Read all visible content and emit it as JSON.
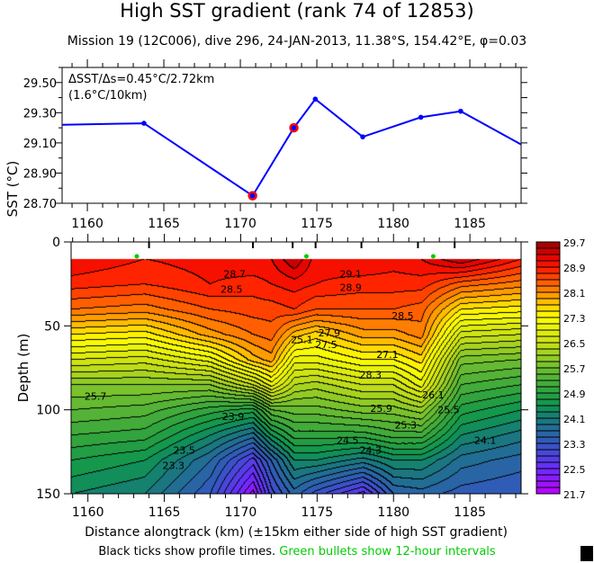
{
  "title": "High SST gradient (rank 74 of 12853)",
  "subtitle": "Mission 19 (12C006),  dive 296,  24-JAN-2013,  11.38°S, 154.42°E,  φ=0.03",
  "footnote": {
    "black": "Black ticks show profile times.",
    "green": "Green bullets show 12-hour intervals",
    "green_color": "#00cc00"
  },
  "chart_data": [
    {
      "type": "line",
      "ylabel": "SST (°C)",
      "annotation": [
        "ΔSST/Δs=0.45°C/2.72km",
        "(1.6°C/10km)"
      ],
      "xlim": [
        1158.35,
        1188.35
      ],
      "ylim": [
        28.7,
        29.6
      ],
      "xticks": [
        1160,
        1165,
        1170,
        1175,
        1180,
        1185
      ],
      "yticks": [
        "28.70",
        "28.90",
        "29.10",
        "29.30",
        "29.50"
      ],
      "line_color": "#0000ff",
      "highlight_color": "#ff0000",
      "series": [
        {
          "x": [
            1158.35,
            1163.7,
            1170.8,
            1173.5,
            1174.9,
            1178.0,
            1181.8,
            1184.4,
            1188.35
          ],
          "y": [
            29.22,
            29.23,
            28.75,
            29.2,
            29.39,
            29.14,
            29.27,
            29.31,
            29.09
          ]
        }
      ],
      "highlighted_points": [
        {
          "x": 1170.8,
          "y": 28.75
        },
        {
          "x": 1173.5,
          "y": 29.2
        }
      ]
    },
    {
      "type": "heatmap",
      "subtype": "filled-contour",
      "xlabel": "Distance alongtrack (km) (±15km either side of high SST gradient)",
      "ylabel": "Depth (m)",
      "xlim": [
        1158.9,
        1188.35
      ],
      "ylim": [
        0,
        150
      ],
      "y_inverted": true,
      "xticks": [
        1160,
        1165,
        1170,
        1175,
        1180,
        1185
      ],
      "yticks": [
        0,
        50,
        100,
        150
      ],
      "profile_times_km": [
        1164.0,
        1170.8,
        1173.4,
        1174.9,
        1177.9,
        1181.6,
        1184.0
      ],
      "twelve_hour_marks_km": [
        1163.2,
        1174.3,
        1182.6
      ],
      "x": [
        1158.9,
        1163.7,
        1168.0,
        1170.8,
        1172.0,
        1173.5,
        1174.9,
        1178.0,
        1180.0,
        1181.8,
        1184.4,
        1188.35
      ],
      "depth": [
        10,
        25,
        40,
        55,
        70,
        85,
        100,
        115,
        130,
        150
      ],
      "temperature": [
        [
          29.1,
          28.9,
          29.0,
          29.1,
          29.1,
          29.5,
          29.0,
          29.1,
          29.0,
          29.1,
          29.5,
          28.9
        ],
        [
          28.8,
          28.7,
          28.9,
          28.8,
          28.9,
          29.0,
          28.9,
          28.8,
          28.8,
          28.8,
          28.4,
          28.2
        ],
        [
          28.3,
          28.2,
          28.5,
          28.6,
          28.6,
          28.7,
          28.5,
          28.5,
          28.5,
          28.4,
          27.5,
          27.4
        ],
        [
          27.5,
          27.4,
          28.0,
          28.3,
          28.4,
          27.8,
          27.6,
          28.0,
          28.0,
          28.2,
          26.6,
          26.5
        ],
        [
          26.7,
          26.6,
          27.0,
          27.8,
          28.0,
          27.0,
          27.0,
          27.3,
          27.3,
          27.6,
          25.8,
          25.7
        ],
        [
          25.9,
          25.9,
          25.9,
          26.5,
          27.0,
          26.3,
          26.2,
          26.5,
          26.5,
          27.0,
          25.3,
          25.1
        ],
        [
          25.5,
          25.4,
          25.0,
          24.8,
          25.5,
          25.6,
          25.6,
          25.8,
          25.8,
          26.0,
          24.8,
          24.5
        ],
        [
          25.1,
          25.0,
          24.3,
          23.8,
          24.5,
          25.0,
          25.0,
          25.0,
          25.2,
          25.2,
          24.3,
          24.0
        ],
        [
          24.7,
          24.5,
          23.7,
          22.8,
          23.5,
          24.3,
          24.3,
          24.0,
          24.3,
          24.3,
          23.8,
          23.6
        ],
        [
          24.3,
          24.1,
          23.3,
          22.0,
          23.0,
          23.6,
          23.2,
          22.6,
          23.5,
          23.6,
          23.4,
          23.3
        ]
      ],
      "contour_labels": [
        {
          "text": "28.7",
          "x": 1169.6,
          "y": 19
        },
        {
          "text": "28.5",
          "x": 1169.4,
          "y": 28
        },
        {
          "text": "29.1",
          "x": 1177.2,
          "y": 19
        },
        {
          "text": "28.9",
          "x": 1177.2,
          "y": 27
        },
        {
          "text": "28.5",
          "x": 1180.6,
          "y": 44
        },
        {
          "text": "27.9",
          "x": 1175.8,
          "y": 54
        },
        {
          "text": "27.5",
          "x": 1175.6,
          "y": 61
        },
        {
          "text": "27.1",
          "x": 1179.6,
          "y": 67
        },
        {
          "text": "28.3",
          "x": 1178.5,
          "y": 79
        },
        {
          "text": "26.1",
          "x": 1182.6,
          "y": 91
        },
        {
          "text": "25.9",
          "x": 1179.2,
          "y": 99
        },
        {
          "text": "25.7",
          "x": 1160.5,
          "y": 92
        },
        {
          "text": "25.5",
          "x": 1183.6,
          "y": 100
        },
        {
          "text": "23.9",
          "x": 1169.5,
          "y": 104
        },
        {
          "text": "25.3",
          "x": 1180.8,
          "y": 109
        },
        {
          "text": "24.5",
          "x": 1177.0,
          "y": 118
        },
        {
          "text": "24.3",
          "x": 1178.5,
          "y": 124
        },
        {
          "text": "24.1",
          "x": 1186.0,
          "y": 118
        },
        {
          "text": "23.5",
          "x": 1166.3,
          "y": 124
        },
        {
          "text": "23.3",
          "x": 1165.6,
          "y": 133
        },
        {
          "text": "25.1",
          "x": 1174.0,
          "y": 58
        }
      ],
      "colorbar": {
        "min": 21.7,
        "max": 29.7,
        "step": 0.2,
        "tick_labels": [
          "21.7",
          "22.5",
          "23.3",
          "24.1",
          "24.9",
          "25.7",
          "26.5",
          "27.3",
          "28.1",
          "28.9",
          "29.7"
        ],
        "anchor_colors": [
          {
            "v": 21.7,
            "c": "#c000ff"
          },
          {
            "v": 22.5,
            "c": "#6a2cff"
          },
          {
            "v": 23.3,
            "c": "#3358c0"
          },
          {
            "v": 24.1,
            "c": "#177a78"
          },
          {
            "v": 24.5,
            "c": "#0f9550"
          },
          {
            "v": 24.9,
            "c": "#28a040"
          },
          {
            "v": 25.7,
            "c": "#6ebe30"
          },
          {
            "v": 26.5,
            "c": "#c8e014"
          },
          {
            "v": 27.3,
            "c": "#ffff00"
          },
          {
            "v": 27.7,
            "c": "#ffcc00"
          },
          {
            "v": 28.1,
            "c": "#ff8c00"
          },
          {
            "v": 28.9,
            "c": "#ff1500"
          },
          {
            "v": 29.3,
            "c": "#dd0000"
          },
          {
            "v": 29.7,
            "c": "#990000"
          }
        ]
      }
    }
  ]
}
